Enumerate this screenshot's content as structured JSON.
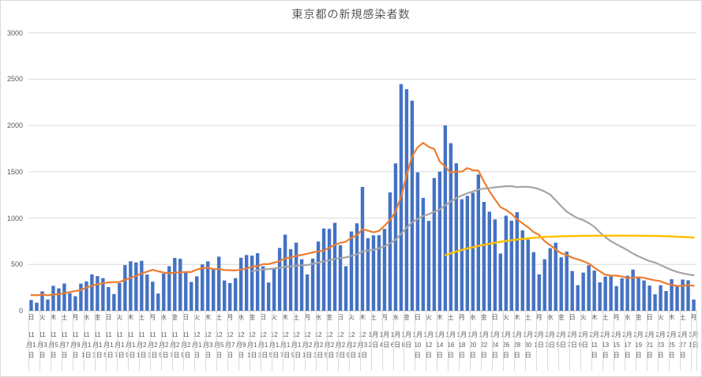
{
  "title": "東京都の新規感染者数",
  "colors": {
    "bar": "#4472C4",
    "line_orange": "#ED7D31",
    "line_gray": "#A5A5A5",
    "line_yellow": "#FFC000",
    "grid": "#D9D9D9",
    "axis": "#BFBFBF",
    "text": "#595959"
  },
  "y_axis": {
    "min": 0,
    "max": 3000,
    "step": 500,
    "tick_labels": [
      "0",
      "500",
      "1000",
      "1500",
      "2000",
      "2500",
      "3000"
    ]
  },
  "x_labels": [
    {
      "dow": "日",
      "date": "11月1日"
    },
    {
      "dow": "火",
      "date": "11月3日"
    },
    {
      "dow": "木",
      "date": "11月5日"
    },
    {
      "dow": "土",
      "date": "11月7日"
    },
    {
      "dow": "月",
      "date": "11月9日"
    },
    {
      "dow": "水",
      "date": "11月11日"
    },
    {
      "dow": "金",
      "date": "11月13日"
    },
    {
      "dow": "日",
      "date": "11月15日"
    },
    {
      "dow": "火",
      "date": "11月17日"
    },
    {
      "dow": "木",
      "date": "11月19日"
    },
    {
      "dow": "土",
      "date": "11月21日"
    },
    {
      "dow": "月",
      "date": "11月23日"
    },
    {
      "dow": "水",
      "date": "11月25日"
    },
    {
      "dow": "金",
      "date": "11月27日"
    },
    {
      "dow": "日",
      "date": "11月29日"
    },
    {
      "dow": "火",
      "date": "12月1日"
    },
    {
      "dow": "木",
      "date": "12月3日"
    },
    {
      "dow": "土",
      "date": "12月5日"
    },
    {
      "dow": "月",
      "date": "12月7日"
    },
    {
      "dow": "水",
      "date": "12月9日"
    },
    {
      "dow": "金",
      "date": "12月11日"
    },
    {
      "dow": "日",
      "date": "12月13日"
    },
    {
      "dow": "火",
      "date": "12月15日"
    },
    {
      "dow": "木",
      "date": "12月17日"
    },
    {
      "dow": "土",
      "date": "12月19日"
    },
    {
      "dow": "月",
      "date": "12月21日"
    },
    {
      "dow": "水",
      "date": "12月23日"
    },
    {
      "dow": "金",
      "date": "12月25日"
    },
    {
      "dow": "日",
      "date": "12月27日"
    },
    {
      "dow": "火",
      "date": "12月29日"
    },
    {
      "dow": "木",
      "date": "12月31日"
    },
    {
      "dow": "土",
      "date": "1月2日"
    },
    {
      "dow": "月",
      "date": "1月4日"
    },
    {
      "dow": "水",
      "date": "1月6日"
    },
    {
      "dow": "金",
      "date": "1月8日"
    },
    {
      "dow": "日",
      "date": "1月10日"
    },
    {
      "dow": "火",
      "date": "1月12日"
    },
    {
      "dow": "木",
      "date": "1月14日"
    },
    {
      "dow": "土",
      "date": "1月16日"
    },
    {
      "dow": "月",
      "date": "1月18日"
    },
    {
      "dow": "水",
      "date": "1月20日"
    },
    {
      "dow": "金",
      "date": "1月22日"
    },
    {
      "dow": "日",
      "date": "1月24日"
    },
    {
      "dow": "火",
      "date": "1月26日"
    },
    {
      "dow": "木",
      "date": "1月28日"
    },
    {
      "dow": "土",
      "date": "1月30日"
    },
    {
      "dow": "月",
      "date": "2月1日"
    },
    {
      "dow": "水",
      "date": "2月3日"
    },
    {
      "dow": "金",
      "date": "2月5日"
    },
    {
      "dow": "日",
      "date": "2月7日"
    },
    {
      "dow": "火",
      "date": "2月9日"
    },
    {
      "dow": "木",
      "date": "2月11日"
    },
    {
      "dow": "土",
      "date": "2月13日"
    },
    {
      "dow": "月",
      "date": "2月15日"
    },
    {
      "dow": "水",
      "date": "2月17日"
    },
    {
      "dow": "金",
      "date": "2月19日"
    },
    {
      "dow": "日",
      "date": "2月21日"
    },
    {
      "dow": "火",
      "date": "2月23日"
    },
    {
      "dow": "木",
      "date": "2月25日"
    },
    {
      "dow": "土",
      "date": "2月27日"
    },
    {
      "dow": "月",
      "date": "3月1日"
    }
  ],
  "chart_data": {
    "type": "bar",
    "title": "東京都の新規感染者数",
    "x_start_label": "11月1日",
    "x_end_label": "3月1日",
    "x_label_interval_days": 2,
    "ylim": [
      0,
      3000
    ],
    "y_step": 500,
    "grid": true,
    "legend": "none",
    "daily_values": [
      116,
      87,
      209,
      122,
      269,
      242,
      294,
      189,
      157,
      293,
      317,
      393,
      374,
      352,
      255,
      180,
      298,
      493,
      534,
      522,
      539,
      391,
      314,
      186,
      401,
      481,
      570,
      561,
      418,
      311,
      372,
      500,
      533,
      449,
      584,
      327,
      299,
      352,
      572,
      602,
      595,
      621,
      480,
      305,
      460,
      678,
      822,
      664,
      736,
      556,
      392,
      563,
      748,
      888,
      884,
      949,
      708,
      481,
      856,
      944,
      1337,
      783,
      814,
      816,
      884,
      1278,
      1591,
      2447,
      2392,
      2268,
      1494,
      1219,
      970,
      1433,
      1502,
      2001,
      1809,
      1592,
      1204,
      1240,
      1274,
      1471,
      1175,
      1070,
      986,
      618,
      1026,
      973,
      1064,
      868,
      769,
      633,
      393,
      556,
      676,
      734,
      577,
      639,
      429,
      276,
      412,
      491,
      434,
      307,
      369,
      371,
      266,
      350,
      378,
      445,
      353,
      327,
      272,
      178,
      275,
      213,
      340,
      270,
      337,
      329,
      121
    ],
    "series": [
      {
        "name": "bars-daily-cases",
        "type": "bar",
        "color": "#4472C4",
        "values_ref": "daily_values"
      },
      {
        "name": "line-orange-7day-average",
        "type": "line",
        "color": "#ED7D31",
        "derived": "moving_average",
        "window": 7,
        "pre_window_values": [
          102,
          158,
          171,
          221,
          203,
          215
        ]
      },
      {
        "name": "line-gray-28day-average",
        "type": "line",
        "color": "#A5A5A5",
        "derived": "moving_average",
        "window": 28,
        "start_index": 40
      },
      {
        "name": "line-yellow",
        "type": "line",
        "color": "#FFC000",
        "points": [
          [
            75,
            600
          ],
          [
            77,
            640
          ],
          [
            79,
            672
          ],
          [
            81,
            700
          ],
          [
            83,
            722
          ],
          [
            85,
            745
          ],
          [
            87,
            762
          ],
          [
            89,
            775
          ],
          [
            91,
            788
          ],
          [
            93,
            797
          ],
          [
            96,
            804
          ],
          [
            100,
            809
          ],
          [
            105,
            811
          ],
          [
            110,
            810
          ],
          [
            114,
            806
          ],
          [
            117,
            800
          ],
          [
            119,
            794
          ],
          [
            120,
            789
          ]
        ]
      }
    ]
  }
}
